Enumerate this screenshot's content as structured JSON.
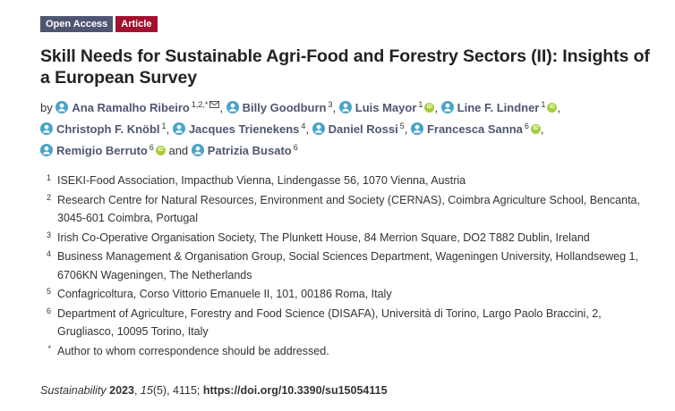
{
  "badges": {
    "open_access": "Open Access",
    "article": "Article"
  },
  "title": "Skill Needs for Sustainable Agri-Food and Forestry Sectors (II): Insights of a European Survey",
  "by_label": "by",
  "authors": [
    {
      "name": "Ana Ramalho Ribeiro",
      "aff": "1,2,*",
      "orcid": false,
      "mail": true,
      "sep": ","
    },
    {
      "name": "Billy Goodburn",
      "aff": "3",
      "orcid": false,
      "mail": false,
      "sep": ","
    },
    {
      "name": "Luis Mayor",
      "aff": "1",
      "orcid": true,
      "mail": false,
      "sep": ","
    },
    {
      "name": "Line F. Lindner",
      "aff": "1",
      "orcid": true,
      "mail": false,
      "sep": ","
    },
    {
      "name": "Christoph F. Knöbl",
      "aff": "1",
      "orcid": false,
      "mail": false,
      "sep": ","
    },
    {
      "name": "Jacques Trienekens",
      "aff": "4",
      "orcid": false,
      "mail": false,
      "sep": ","
    },
    {
      "name": "Daniel Rossi",
      "aff": "5",
      "orcid": false,
      "mail": false,
      "sep": ","
    },
    {
      "name": "Francesca Sanna",
      "aff": "6",
      "orcid": true,
      "mail": false,
      "sep": ","
    },
    {
      "name": "Remigio Berruto",
      "aff": "6",
      "orcid": true,
      "mail": false,
      "sep": " and"
    },
    {
      "name": "Patrizia Busato",
      "aff": "6",
      "orcid": false,
      "mail": false,
      "sep": ""
    }
  ],
  "orcid_text": "iD",
  "affiliations": [
    {
      "num": "1",
      "text": "ISEKI-Food Association, Impacthub Vienna, Lindengasse 56, 1070 Vienna, Austria"
    },
    {
      "num": "2",
      "text": "Research Centre for Natural Resources, Environment and Society (CERNAS), Coimbra Agriculture School, Bencanta, 3045-601 Coimbra, Portugal"
    },
    {
      "num": "3",
      "text": "Irish Co-Operative Organisation Society, The Plunkett House, 84 Merrion Square, DO2 T882 Dublin, Ireland"
    },
    {
      "num": "4",
      "text": "Business Management & Organisation Group, Social Sciences Department, Wageningen University, Hollandseweg 1, 6706KN Wageningen, The Netherlands"
    },
    {
      "num": "5",
      "text": "Confagricoltura, Corso Vittorio Emanuele II, 101, 00186 Roma, Italy"
    },
    {
      "num": "6",
      "text": "Department of Agriculture, Forestry and Food Science (DISAFA), Università di Torino, Largo Paolo Braccini, 2, Grugliasco, 10095 Torino, Italy"
    },
    {
      "num": "*",
      "text": "Author to whom correspondence should be addressed."
    }
  ],
  "citation": {
    "journal": "Sustainability",
    "year": "2023",
    "volume": "15",
    "issue": "(5)",
    "pages": ", 4115; ",
    "doi": "https://doi.org/10.3390/su15054115"
  },
  "colors": {
    "author_link": "#4f5671",
    "orcid": "#a6ce39",
    "open_access_badge": "#4f5671",
    "article_badge": "#a3112e",
    "person_icon": "#4aa3c9"
  }
}
